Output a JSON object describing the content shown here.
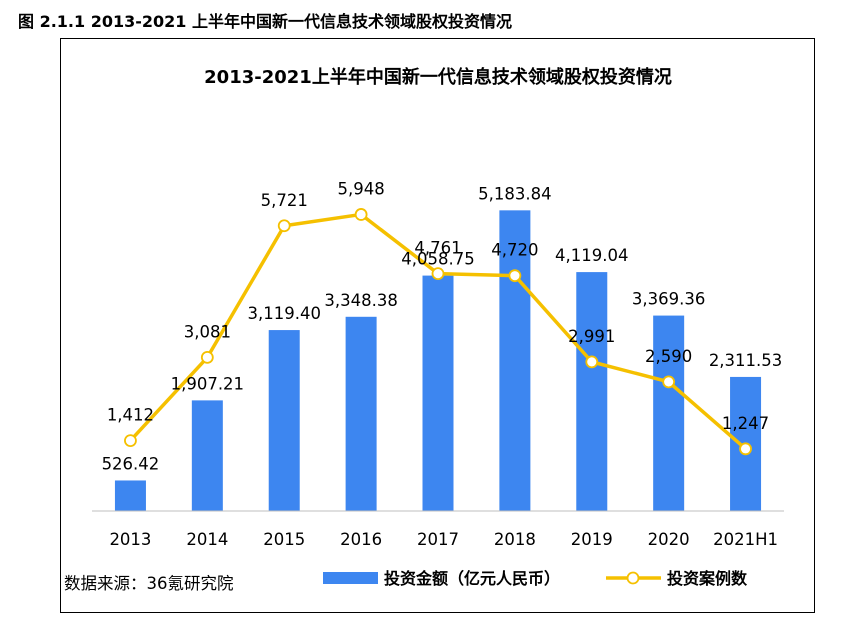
{
  "caption": "图 2.1.1 2013-2021 上半年中国新一代信息技术领域股权投资情况",
  "source": "数据来源：36氪研究院",
  "colors": {
    "bar": "#3d86f0",
    "line": "#f5c000",
    "marker_fill": "#ffffff"
  },
  "chart_data": {
    "type": "bar",
    "title": "2013-2021上半年中国新一代信息技术领域股权投资情况",
    "categories": [
      "2013",
      "2014",
      "2015",
      "2016",
      "2017",
      "2018",
      "2019",
      "2020",
      "2021H1"
    ],
    "series": [
      {
        "name": "投资金额（亿元人民币）",
        "type": "bar",
        "values": [
          526.42,
          1907.21,
          3119.4,
          3348.38,
          4058.75,
          5183.84,
          4119.04,
          3369.36,
          2311.53
        ],
        "labels": [
          "526.42",
          "1,907.21",
          "3,119.40",
          "3,348.38",
          "4,058.75",
          "5,183.84",
          "4,119.04",
          "3,369.36",
          "2,311.53"
        ]
      },
      {
        "name": "投资案例数",
        "type": "line",
        "values": [
          1412,
          3081,
          5721,
          5948,
          4761,
          4720,
          2991,
          2590,
          1247
        ],
        "labels": [
          "1,412",
          "3,081",
          "5,721",
          "5,948",
          "4,761",
          "4,720",
          "2,991",
          "2,590",
          "1,247"
        ]
      }
    ],
    "bar_ylim": [
      0,
      6000
    ],
    "line_ylim": [
      0,
      7000
    ],
    "xlabel": "",
    "ylabel": "",
    "grid": false,
    "legend_position": "bottom"
  }
}
